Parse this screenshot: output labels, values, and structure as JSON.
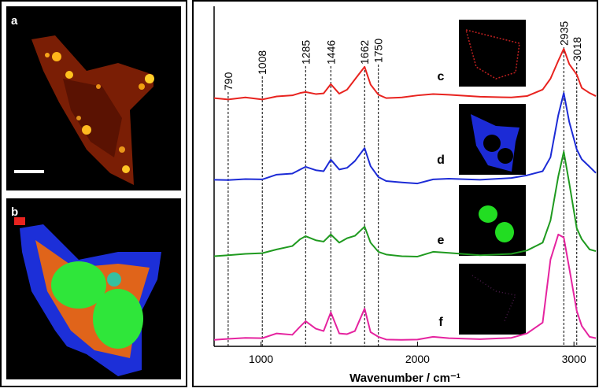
{
  "panels": [
    "a",
    "b"
  ],
  "chart_data": {
    "type": "line",
    "x_label": "Wavenumber / cm⁻¹",
    "xlim": [
      700,
      3140
    ],
    "xticks": [
      1000,
      2000,
      3000
    ],
    "ylim": [
      0,
      100
    ],
    "peak_lines": [
      790,
      1008,
      1285,
      1446,
      1662,
      1750,
      2935,
      3018
    ],
    "x": [
      700,
      790,
      900,
      1008,
      1100,
      1200,
      1250,
      1285,
      1350,
      1400,
      1446,
      1500,
      1550,
      1600,
      1662,
      1700,
      1750,
      1800,
      1900,
      2000,
      2100,
      2200,
      2400,
      2600,
      2700,
      2800,
      2850,
      2900,
      2935,
      2970,
      3018,
      3050,
      3100,
      3140
    ],
    "series": [
      {
        "name": "c",
        "color": "#e8231f",
        "values": [
          73,
          72.6,
          73.2,
          72.6,
          73.5,
          73.8,
          74.5,
          74.8,
          74.2,
          74.4,
          77.1,
          74.3,
          75.5,
          78.5,
          82.2,
          77,
          74,
          73,
          73.2,
          73.8,
          74.2,
          74,
          73.4,
          73.2,
          73.6,
          75.5,
          78.7,
          84,
          87.5,
          83,
          79.9,
          76,
          74.5,
          73.6
        ]
      },
      {
        "name": "d",
        "color": "#1c2bd6",
        "values": [
          49,
          48.9,
          49.2,
          49.1,
          50.5,
          50.8,
          52,
          52.8,
          51.8,
          51.5,
          54.9,
          52,
          52.5,
          54.5,
          58.3,
          53,
          49.8,
          48.6,
          48.2,
          47.9,
          49.1,
          49.3,
          49,
          49.5,
          50.3,
          51.5,
          55.6,
          68,
          74.5,
          66,
          57.9,
          55,
          52.8,
          51
        ]
      },
      {
        "name": "e",
        "color": "#1f9a1f",
        "values": [
          26.5,
          26.8,
          27.2,
          27.4,
          28.5,
          29.5,
          31.5,
          32.4,
          31.2,
          30.8,
          32.9,
          30.5,
          31.8,
          32.5,
          35.2,
          30.5,
          27.8,
          27,
          26.5,
          26.4,
          27.8,
          27.5,
          26.8,
          27.2,
          28.2,
          30.5,
          37,
          50,
          57.2,
          48,
          34.7,
          31.5,
          28.5,
          28
        ]
      },
      {
        "name": "f",
        "color": "#e5239f",
        "values": [
          1.9,
          2.2,
          2.5,
          2.4,
          3.8,
          3.4,
          5.8,
          7.4,
          5.2,
          4.5,
          10,
          3.8,
          3.6,
          4.5,
          11.1,
          4.2,
          2.8,
          2,
          1.9,
          2,
          2.8,
          2.4,
          2.1,
          2.5,
          3.8,
          7,
          25.5,
          32.9,
          32,
          23,
          10.4,
          6,
          2.8,
          2.4
        ]
      }
    ]
  }
}
